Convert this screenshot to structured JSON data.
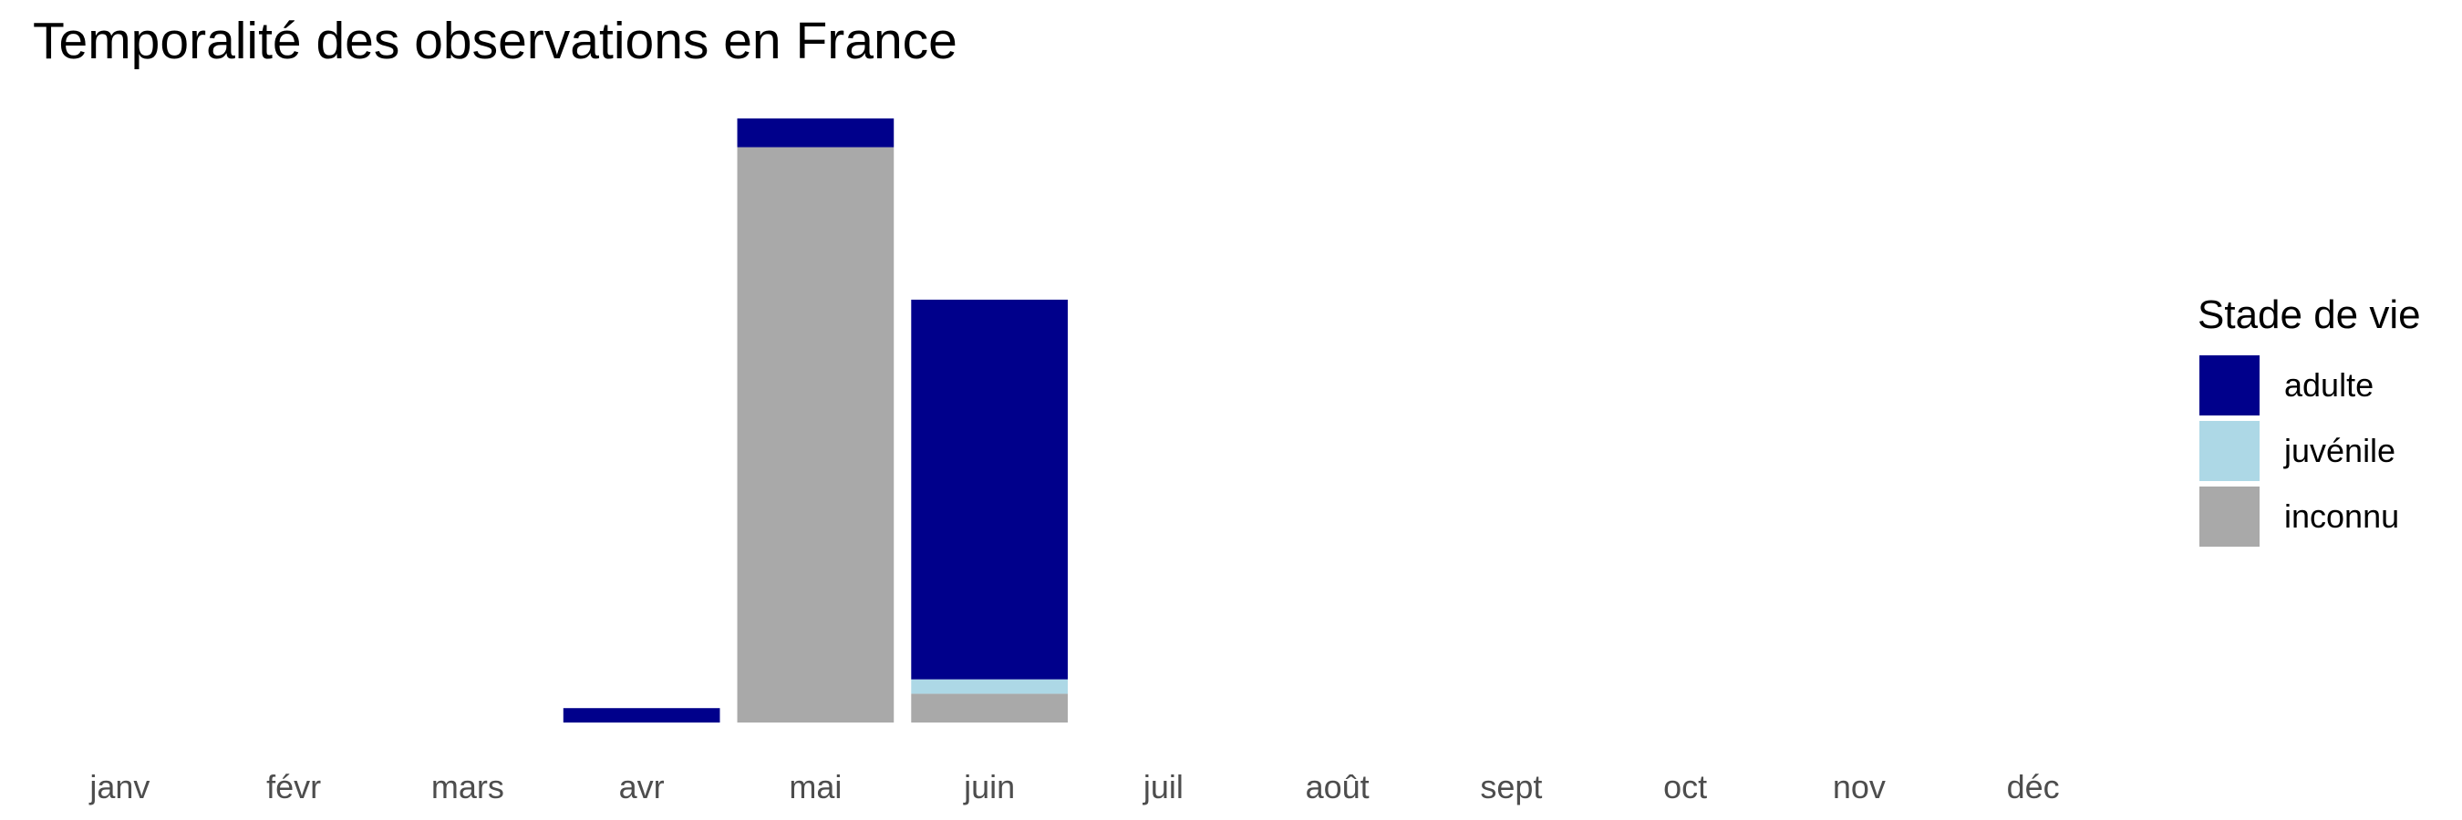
{
  "chart_data": {
    "type": "bar",
    "stacked": true,
    "title": "Temporalité des observations en France",
    "xlabel": "",
    "ylabel": "",
    "categories": [
      "janv",
      "févr",
      "mars",
      "avr",
      "mai",
      "juin",
      "juil",
      "août",
      "sept",
      "oct",
      "nov",
      "déc"
    ],
    "series": [
      {
        "name": "inconnu",
        "color": "#a9a9a9",
        "values": [
          0,
          0,
          0,
          0,
          20.0,
          1.0,
          0,
          0,
          0,
          0,
          0,
          0
        ]
      },
      {
        "name": "juvénile",
        "color": "#add8e6",
        "values": [
          0,
          0,
          0,
          0,
          0,
          0.5,
          0,
          0,
          0,
          0,
          0,
          0
        ]
      },
      {
        "name": "adulte",
        "color": "#00008b",
        "values": [
          0,
          0,
          0,
          0.5,
          1.0,
          13.2,
          0,
          0,
          0,
          0,
          0,
          0
        ]
      }
    ],
    "ylim": [
      0,
      21
    ],
    "grid": false,
    "y_axis_shown": false,
    "legend": {
      "title": "Stade de vie",
      "position": "right",
      "entries": [
        {
          "label": "adulte",
          "color": "#00008b"
        },
        {
          "label": "juvénile",
          "color": "#add8e6"
        },
        {
          "label": "inconnu",
          "color": "#a9a9a9"
        }
      ]
    }
  }
}
